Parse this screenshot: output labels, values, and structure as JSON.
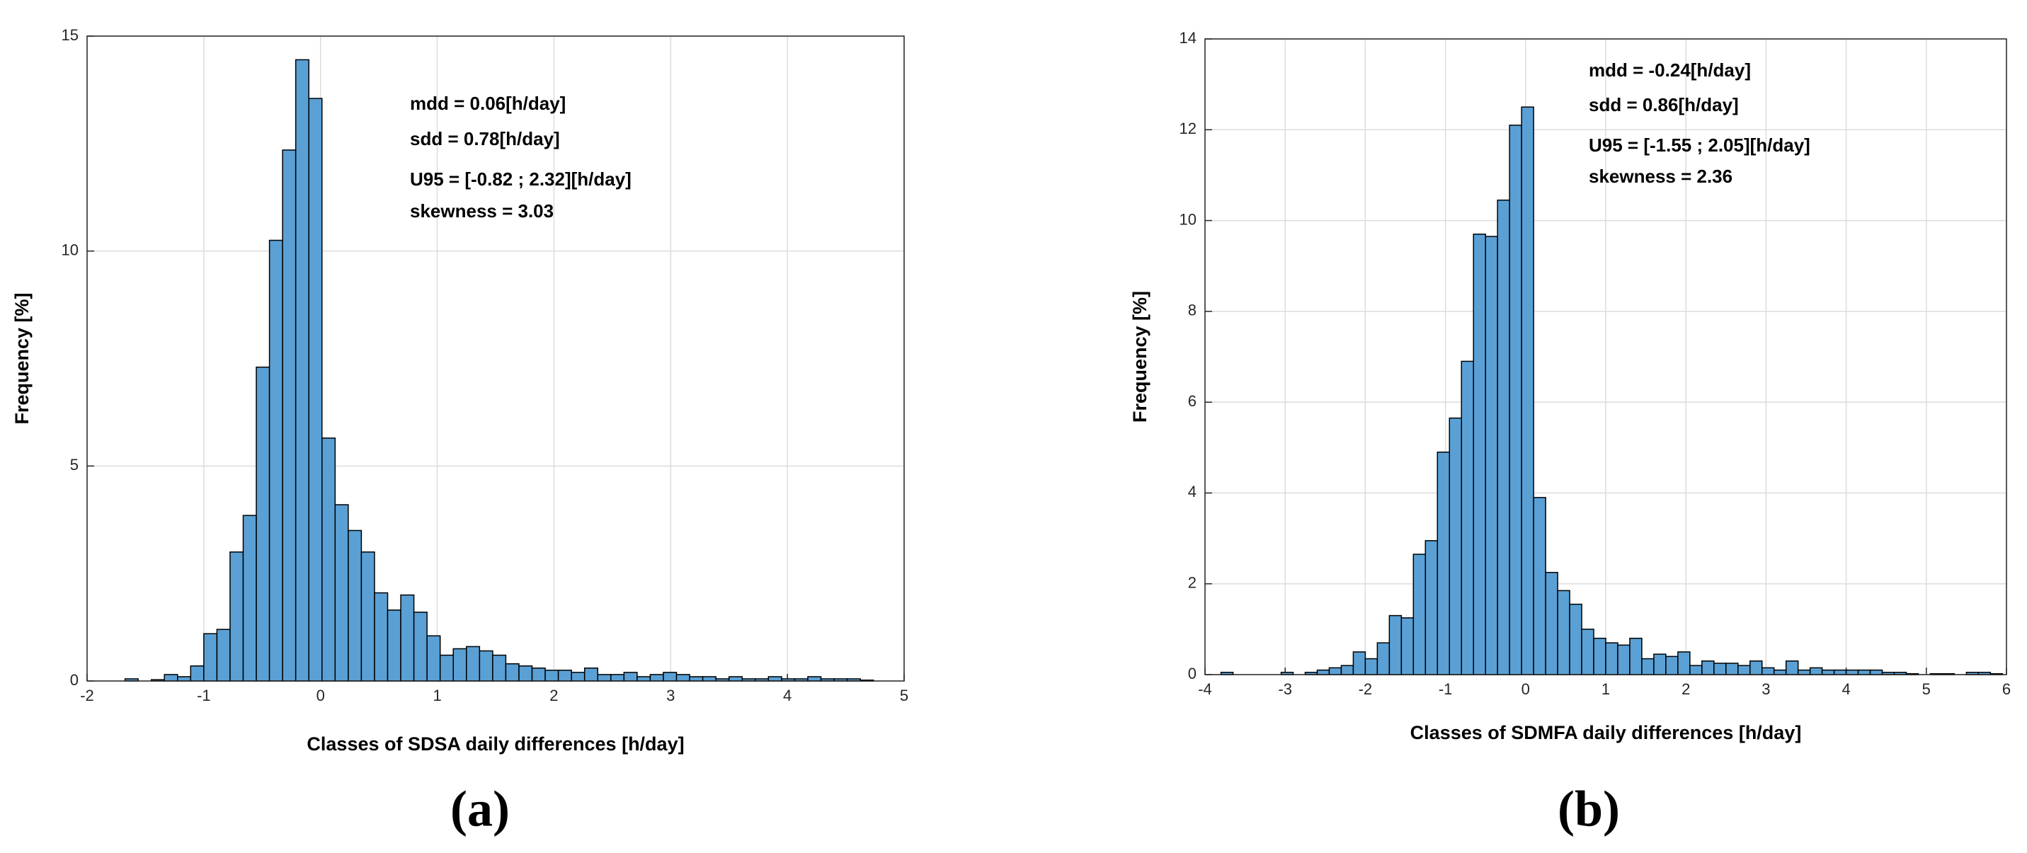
{
  "chart_data": [
    {
      "type": "histogram",
      "label": "(a)",
      "xlabel": "Classes of SDSA daily differences [h/day]",
      "ylabel": "Frequency [%]",
      "annotations": [
        "mdd = 0.06[h/day]",
        "sdd = 0.78[h/day]",
        "U95 = [-0.82 ; 2.32][h/day]",
        "skewness = 3.03"
      ],
      "color": "#5aa0d5",
      "grid": true,
      "xlim": [
        -2,
        5
      ],
      "xticks": [
        -2,
        -1,
        0,
        1,
        2,
        3,
        4,
        5
      ],
      "ylim": [
        0,
        15
      ],
      "yticks": [
        0,
        5,
        10,
        15
      ],
      "bins": [
        -1.675,
        -1.5625,
        -1.45,
        -1.3375,
        -1.225,
        -1.1125,
        -1.0,
        -0.8875,
        -0.775,
        -0.6625,
        -0.55,
        -0.4375,
        -0.325,
        -0.2125,
        -0.1,
        0.0125,
        0.125,
        0.2375,
        0.35,
        0.4625,
        0.575,
        0.6875,
        0.8,
        0.9125,
        1.025,
        1.1375,
        1.25,
        1.3625,
        1.475,
        1.5875,
        1.7,
        1.8125,
        1.925,
        2.0375,
        2.15,
        2.2625,
        2.375,
        2.4875,
        2.6,
        2.7125,
        2.825,
        2.9375,
        3.05,
        3.1625,
        3.275,
        3.3875,
        3.5,
        3.6125,
        3.725,
        3.8375,
        3.95,
        4.0625,
        4.175,
        4.2875,
        4.4,
        4.5125,
        4.625,
        4.7375
      ],
      "values": [
        0.05,
        0,
        0.03,
        0.15,
        0.1,
        0.35,
        1.1,
        1.2,
        3.0,
        3.85,
        7.3,
        10.25,
        12.35,
        14.45,
        13.55,
        5.65,
        4.1,
        3.5,
        3.0,
        2.05,
        1.65,
        2.0,
        1.6,
        1.05,
        0.6,
        0.75,
        0.8,
        0.7,
        0.6,
        0.4,
        0.35,
        0.3,
        0.25,
        0.25,
        0.2,
        0.3,
        0.15,
        0.15,
        0.2,
        0.1,
        0.15,
        0.2,
        0.15,
        0.1,
        0.1,
        0.05,
        0.1,
        0.05,
        0.05,
        0.1,
        0.05,
        0.05,
        0.1,
        0.05,
        0.05,
        0.05,
        0.02
      ]
    },
    {
      "type": "histogram",
      "label": "(b)",
      "xlabel": "Classes of SDMFA daily differences [h/day]",
      "ylabel": "Frequency [%]",
      "annotations": [
        "mdd = -0.24[h/day]",
        "sdd = 0.86[h/day]",
        "U95 = [-1.55 ; 2.05][h/day]",
        "skewness = 2.36"
      ],
      "color": "#5aa0d5",
      "grid": true,
      "xlim": [
        -4,
        6
      ],
      "xticks": [
        -4,
        -3,
        -2,
        -1,
        0,
        1,
        2,
        3,
        4,
        5,
        6
      ],
      "ylim": [
        0,
        14
      ],
      "yticks": [
        0,
        2,
        4,
        6,
        8,
        10,
        12,
        14
      ],
      "bins": [
        -3.8,
        -3.65,
        -3.5,
        -3.35,
        -3.2,
        -3.05,
        -2.9,
        -2.75,
        -2.6,
        -2.45,
        -2.3,
        -2.15,
        -2.0,
        -1.85,
        -1.7,
        -1.55,
        -1.4,
        -1.25,
        -1.1,
        -0.95,
        -0.8,
        -0.65,
        -0.5,
        -0.35,
        -0.2,
        -0.05,
        0.1,
        0.25,
        0.4,
        0.55,
        0.7,
        0.85,
        1.0,
        1.15,
        1.3,
        1.45,
        1.6,
        1.75,
        1.9,
        2.05,
        2.2,
        2.35,
        2.5,
        2.65,
        2.8,
        2.95,
        3.1,
        3.25,
        3.4,
        3.55,
        3.7,
        3.85,
        4.0,
        4.15,
        4.3,
        4.45,
        4.6,
        4.75,
        4.9,
        5.05,
        5.2,
        5.35,
        5.5,
        5.65,
        5.8,
        5.95
      ],
      "values": [
        0.05,
        0,
        0,
        0,
        0,
        0.05,
        0,
        0.05,
        0.1,
        0.15,
        0.2,
        0.5,
        0.35,
        0.7,
        1.3,
        1.25,
        2.65,
        2.95,
        4.9,
        5.65,
        6.9,
        9.7,
        9.65,
        10.45,
        12.1,
        12.5,
        3.9,
        2.25,
        1.85,
        1.55,
        1.0,
        0.8,
        0.7,
        0.65,
        0.8,
        0.35,
        0.45,
        0.4,
        0.5,
        0.2,
        0.3,
        0.25,
        0.25,
        0.2,
        0.3,
        0.15,
        0.1,
        0.3,
        0.1,
        0.15,
        0.1,
        0.1,
        0.1,
        0.1,
        0.1,
        0.05,
        0.05,
        0.02,
        0,
        0.02,
        0.02,
        0,
        0.05,
        0.05,
        0.02
      ]
    }
  ]
}
